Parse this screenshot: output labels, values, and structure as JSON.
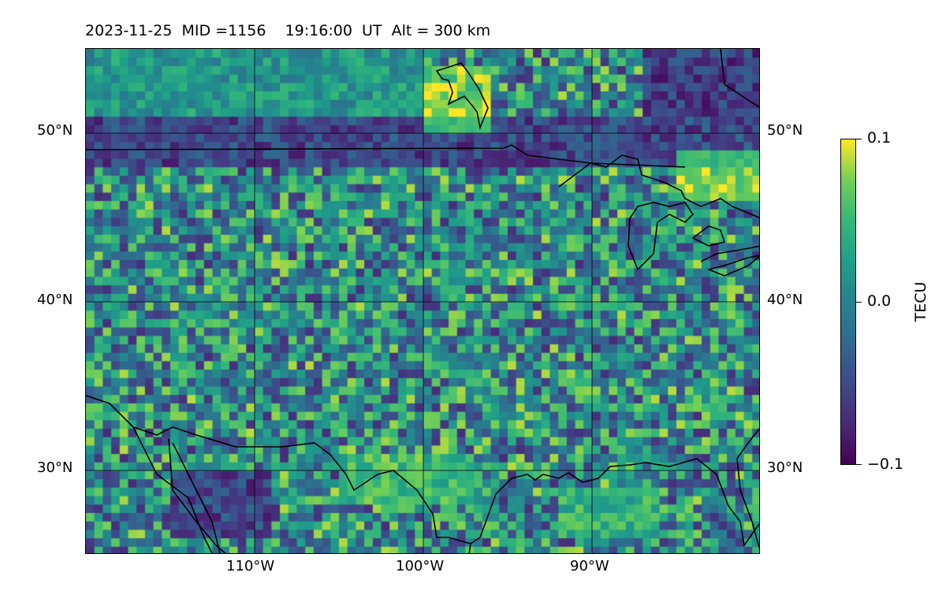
{
  "title": "2023-11-25  MID =1156    19:16:00  UT  Alt = 300 km",
  "chart_data": {
    "type": "heatmap",
    "title": "2023-11-25  MID =1156    19:16:00  UT  Alt = 300 km",
    "xlabel": "",
    "ylabel": "",
    "xlim": [
      -120,
      -80
    ],
    "ylim": [
      25,
      55
    ],
    "x_ticks": [
      {
        "value": -110,
        "label": "110°W"
      },
      {
        "value": -100,
        "label": "100°W"
      },
      {
        "value": -90,
        "label": "90°W"
      }
    ],
    "y_ticks": [
      {
        "value": 30,
        "label": "30°N"
      },
      {
        "value": 40,
        "label": "40°N"
      },
      {
        "value": 50,
        "label": "50°N"
      }
    ],
    "grid": true,
    "colormap": "viridis",
    "colorbar": {
      "label": "TECU",
      "range": [
        -0.1,
        0.1
      ],
      "ticks": [
        {
          "value": 0.1,
          "label": "0.1"
        },
        {
          "value": 0.0,
          "label": "0.0"
        },
        {
          "value": -0.1,
          "label": "−0.1"
        }
      ]
    },
    "cell_size_deg": 0.5,
    "regions": [
      {
        "name": "north-band-negative",
        "lon": [
          -120,
          -80
        ],
        "lat": [
          48,
          51
        ],
        "value": -0.07
      },
      {
        "name": "ne-corner-negative",
        "lon": [
          -87,
          -80
        ],
        "lat": [
          51,
          55
        ],
        "value": -0.08
      },
      {
        "name": "hudson-bay-positive",
        "lon": [
          -100,
          -96
        ],
        "lat": [
          50,
          54
        ],
        "value": 0.09
      },
      {
        "name": "great-lakes-positive",
        "lon": [
          -85,
          -80
        ],
        "lat": [
          46,
          49
        ],
        "value": 0.09
      },
      {
        "name": "north-plateau",
        "lon": [
          -120,
          -100
        ],
        "lat": [
          51,
          55
        ],
        "value": 0.02
      },
      {
        "name": "texas-coast-positive",
        "lon": [
          -105,
          -97
        ],
        "lat": [
          28,
          31
        ],
        "value": 0.06
      },
      {
        "name": "mexico-negative",
        "lon": [
          -115,
          -109
        ],
        "lat": [
          26,
          30
        ],
        "value": -0.07
      },
      {
        "name": "gulf-positive",
        "lon": [
          -92,
          -86
        ],
        "lat": [
          26,
          29
        ],
        "value": 0.05
      }
    ],
    "overlay": "coastlines and national borders"
  }
}
